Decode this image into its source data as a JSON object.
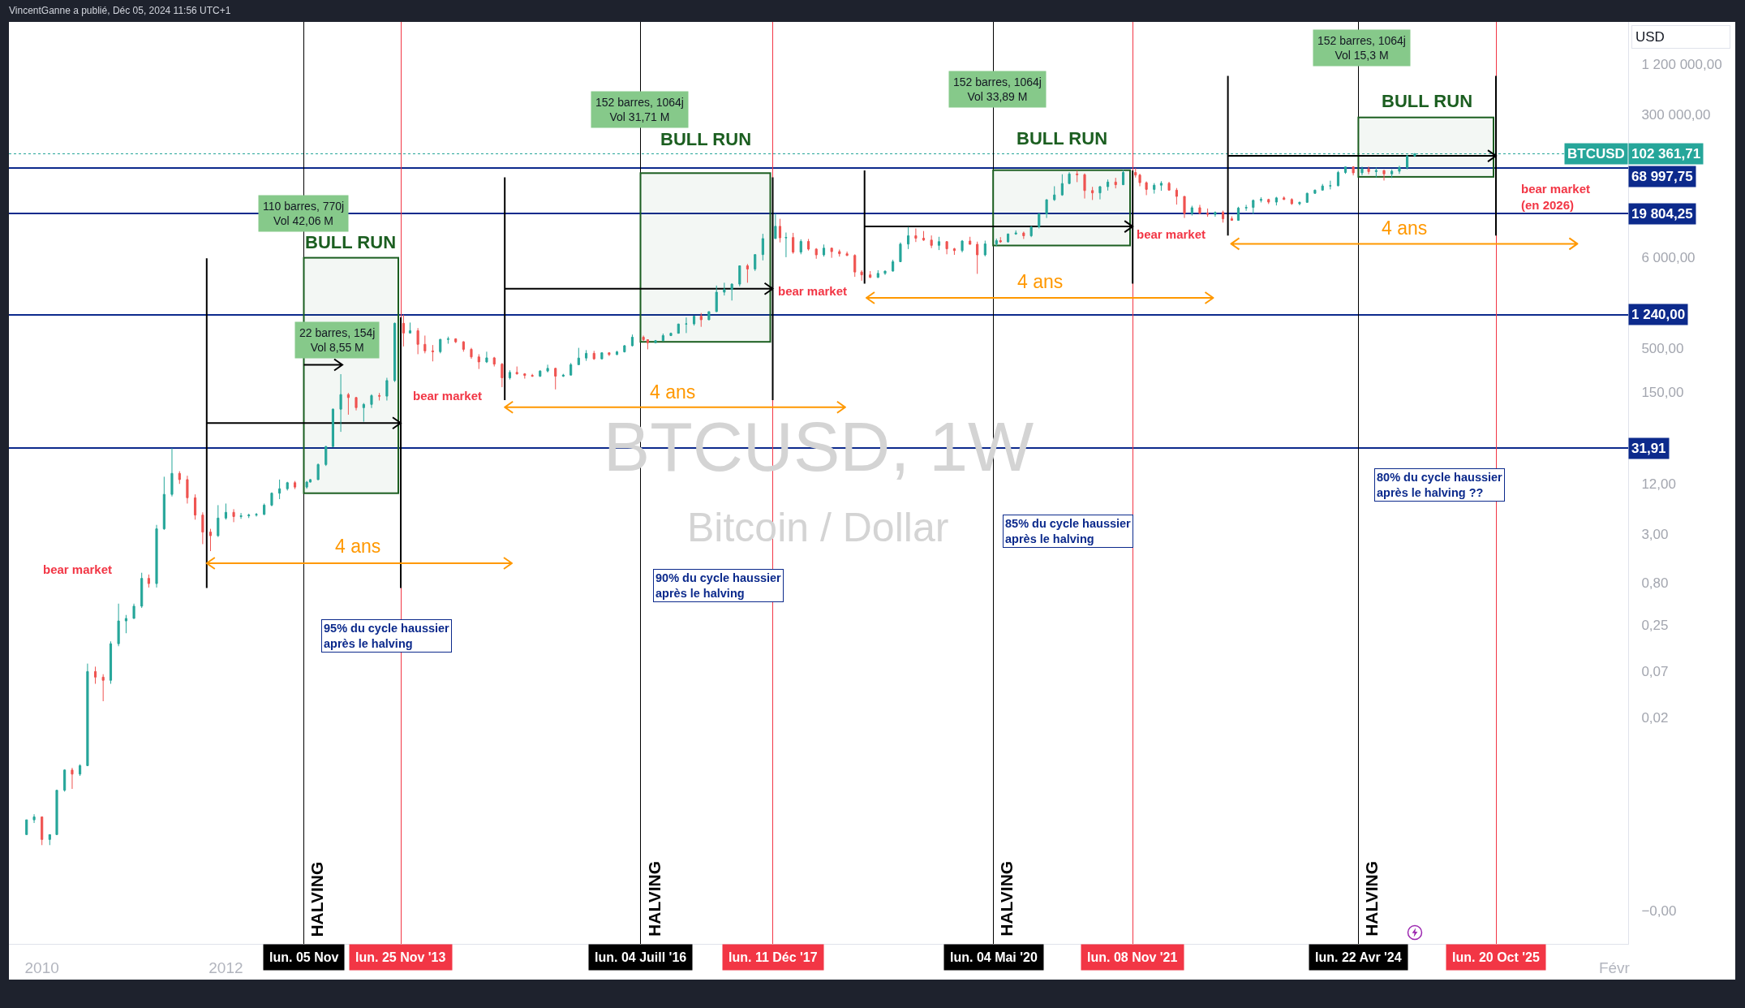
{
  "chart_data": {
    "type": "candlestick",
    "title": "BTCUSD, 1W",
    "subtitle": "Bitcoin / Dollar",
    "ylabel": "USD",
    "log": true,
    "xlim": [
      "2009-08-23",
      "2027-03-28"
    ],
    "ylim": [
      4e-05,
      3800000
    ],
    "xticks": [
      {
        "value": "2010-01-01",
        "label": "2010"
      },
      {
        "value": "2012-01-01",
        "label": "2012"
      },
      {
        "value": "2027-02-01",
        "label": "Févr"
      }
    ],
    "yticks": [
      {
        "value": 1200000,
        "label": "1 200 000,00"
      },
      {
        "value": 300000,
        "label": "300 000,00"
      },
      {
        "value": 6000,
        "label": "6 000,00"
      },
      {
        "value": 500,
        "label": "500,00"
      },
      {
        "value": 150,
        "label": "150,00"
      },
      {
        "value": 12,
        "label": "12,00"
      },
      {
        "value": 3,
        "label": "3,00"
      },
      {
        "value": 0.8,
        "label": "0,80"
      },
      {
        "value": 0.25,
        "label": "0,25"
      },
      {
        "value": 0.07,
        "label": "0,07"
      },
      {
        "value": 0.02,
        "label": "0,02"
      },
      {
        "value": 0.0001,
        "label": "−0,00"
      }
    ],
    "series": [
      {
        "name": "BTCUSD",
        "x": [
          "2009-11",
          "2009-12",
          "2010-01",
          "2010-02",
          "2010-03",
          "2010-04",
          "2010-05",
          "2010-06",
          "2010-07",
          "2010-08",
          "2010-09",
          "2010-10",
          "2010-11",
          "2010-12",
          "2011-01",
          "2011-02",
          "2011-03",
          "2011-04",
          "2011-05",
          "2011-06",
          "2011-07",
          "2011-08",
          "2011-09",
          "2011-10",
          "2011-11",
          "2011-12",
          "2012-01",
          "2012-02",
          "2012-03",
          "2012-04",
          "2012-05",
          "2012-06",
          "2012-07",
          "2012-08",
          "2012-09",
          "2012-10",
          "2012-11-17",
          "2012-12",
          "2013-01",
          "2013-02",
          "2013-03",
          "2013-04",
          "2013-05",
          "2013-06",
          "2013-07",
          "2013-08",
          "2013-09",
          "2013-10",
          "2013-11",
          "2013-12-06",
          "2014-01",
          "2014-02",
          "2014-03",
          "2014-04",
          "2014-05",
          "2014-06",
          "2014-07",
          "2014-08",
          "2014-09",
          "2014-10",
          "2014-11",
          "2014-12",
          "2015-01",
          "2015-02",
          "2015-03",
          "2015-04",
          "2015-05",
          "2015-06",
          "2015-07",
          "2015-08",
          "2015-09",
          "2015-10",
          "2015-11",
          "2015-12",
          "2016-01",
          "2016-02",
          "2016-03",
          "2016-04",
          "2016-05",
          "2016-06",
          "2016-07-15",
          "2016-08",
          "2016-09",
          "2016-10",
          "2016-11",
          "2016-12",
          "2017-01",
          "2017-02",
          "2017-03",
          "2017-04",
          "2017-05",
          "2017-06",
          "2017-07",
          "2017-08",
          "2017-09",
          "2017-10",
          "2017-11",
          "2017-12-21",
          "2018-01-08",
          "2018-02",
          "2018-03",
          "2018-04",
          "2018-05",
          "2018-06",
          "2018-07",
          "2018-08",
          "2018-09",
          "2018-10",
          "2018-11",
          "2018-11-28",
          "2019-01",
          "2019-02",
          "2019-03",
          "2019-04",
          "2019-05",
          "2019-06",
          "2019-07",
          "2019-08",
          "2019-09",
          "2019-10",
          "2019-11",
          "2019-12",
          "2020-01",
          "2020-02",
          "2020-03",
          "2020-04",
          "2020-05-16",
          "2020-06",
          "2020-07",
          "2020-08",
          "2020-09",
          "2020-10",
          "2020-11",
          "2020-12",
          "2021-01",
          "2021-02",
          "2021-03",
          "2021-04",
          "2021-05",
          "2021-06",
          "2021-07",
          "2021-08",
          "2021-09",
          "2021-10",
          "2021-11-19",
          "2021-12-06",
          "2022-01",
          "2022-02",
          "2022-03",
          "2022-04",
          "2022-05",
          "2022-06",
          "2022-07",
          "2022-08",
          "2022-09",
          "2022-10",
          "2022-11",
          "2022-12-06",
          "2023-01",
          "2023-02",
          "2023-03",
          "2023-04",
          "2023-05",
          "2023-06",
          "2023-07",
          "2023-08",
          "2023-09",
          "2023-10",
          "2023-11",
          "2023-12",
          "2024-01",
          "2024-02",
          "2024-03",
          "2024-04",
          "2024-05-06",
          "2024-06",
          "2024-07",
          "2024-08",
          "2024-09",
          "2024-10",
          "2024-11",
          "2024-12"
        ],
        "ohlc": [
          [
            0.0008,
            0.0012,
            0.0008,
            0.0012
          ],
          [
            0.0012,
            0.0014,
            0.0011,
            0.0013
          ],
          [
            0.0013,
            0.0013,
            0.0006,
            0.0007
          ],
          [
            0.0007,
            0.0008,
            0.0006,
            0.0008
          ],
          [
            0.0008,
            0.0027,
            0.0008,
            0.0027
          ],
          [
            0.0027,
            0.0048,
            0.0026,
            0.0047
          ],
          [
            0.0047,
            0.005,
            0.0028,
            0.0042
          ],
          [
            0.0042,
            0.0055,
            0.004,
            0.0053
          ],
          [
            0.0053,
            0.087,
            0.0053,
            0.07
          ],
          [
            0.07,
            0.08,
            0.05,
            0.06
          ],
          [
            0.06,
            0.065,
            0.031,
            0.055
          ],
          [
            0.055,
            0.16,
            0.05,
            0.15
          ],
          [
            0.15,
            0.45,
            0.14,
            0.28
          ],
          [
            0.28,
            0.33,
            0.2,
            0.3
          ],
          [
            0.3,
            0.45,
            0.3,
            0.42
          ],
          [
            0.42,
            1.05,
            0.4,
            0.9
          ],
          [
            0.9,
            1,
            0.7,
            0.78
          ],
          [
            0.78,
            3.9,
            0.7,
            3.5
          ],
          [
            3.5,
            14.6,
            3.4,
            9
          ],
          [
            9,
            32,
            8.5,
            16
          ],
          [
            16,
            17,
            12,
            13.5
          ],
          [
            13.5,
            15,
            7,
            8.2
          ],
          [
            8.2,
            9,
            4.5,
            5.1
          ],
          [
            5.1,
            5.5,
            2.3,
            3.2
          ],
          [
            3.2,
            3.5,
            1.9,
            2.9
          ],
          [
            2.9,
            6.7,
            2.8,
            4.7
          ],
          [
            4.7,
            7,
            4.5,
            5.5
          ],
          [
            5.5,
            6,
            4.2,
            4.9
          ],
          [
            4.9,
            5.4,
            4.6,
            5
          ],
          [
            5,
            5.3,
            4.7,
            5.1
          ],
          [
            5.1,
            5.4,
            4.9,
            5.2
          ],
          [
            5.2,
            7,
            5.1,
            6.7
          ],
          [
            6.7,
            9.5,
            6.5,
            9.3
          ],
          [
            9.3,
            13.5,
            7.9,
            10.5
          ],
          [
            10.5,
            12.7,
            10,
            12.4
          ],
          [
            12.4,
            13,
            10.4,
            11
          ],
          [
            11,
            13,
            10.5,
            12.6
          ],
          [
            12.6,
            13.7,
            12.5,
            13.5
          ],
          [
            13.5,
            21,
            13.3,
            20.4
          ],
          [
            20.4,
            34,
            19.6,
            33.4
          ],
          [
            33.4,
            95,
            33,
            93
          ],
          [
            93,
            243,
            50,
            139
          ],
          [
            139,
            145,
            80,
            128
          ],
          [
            128,
            130,
            90,
            97
          ],
          [
            97,
            110,
            66,
            106
          ],
          [
            106,
            140,
            96,
            135
          ],
          [
            135,
            145,
            118,
            133
          ],
          [
            133,
            220,
            118,
            204
          ],
          [
            204,
            1000,
            196,
            980
          ],
          [
            980,
            1240,
            520,
            750
          ],
          [
            750,
            1000,
            740,
            800
          ],
          [
            800,
            860,
            420,
            550
          ],
          [
            550,
            700,
            430,
            460
          ],
          [
            460,
            540,
            345,
            450
          ],
          [
            450,
            640,
            430,
            630
          ],
          [
            630,
            680,
            560,
            640
          ],
          [
            640,
            650,
            570,
            590
          ],
          [
            590,
            600,
            450,
            480
          ],
          [
            480,
            500,
            370,
            390
          ],
          [
            390,
            420,
            280,
            340
          ],
          [
            340,
            450,
            330,
            380
          ],
          [
            380,
            390,
            300,
            320
          ],
          [
            320,
            330,
            170,
            220
          ],
          [
            220,
            270,
            210,
            255
          ],
          [
            255,
            300,
            240,
            245
          ],
          [
            245,
            250,
            215,
            235
          ],
          [
            235,
            245,
            225,
            230
          ],
          [
            230,
            270,
            225,
            265
          ],
          [
            265,
            315,
            255,
            285
          ],
          [
            285,
            290,
            160,
            230
          ],
          [
            230,
            245,
            225,
            237
          ],
          [
            237,
            330,
            235,
            315
          ],
          [
            315,
            500,
            315,
            378
          ],
          [
            378,
            470,
            350,
            430
          ],
          [
            430,
            460,
            360,
            370
          ],
          [
            370,
            440,
            365,
            437
          ],
          [
            437,
            440,
            400,
            416
          ],
          [
            416,
            460,
            410,
            448
          ],
          [
            448,
            540,
            440,
            530
          ],
          [
            530,
            720,
            520,
            670
          ],
          [
            670,
            700,
            600,
            625
          ],
          [
            625,
            630,
            480,
            575
          ],
          [
            575,
            620,
            570,
            610
          ],
          [
            610,
            740,
            600,
            700
          ],
          [
            700,
            760,
            690,
            745
          ],
          [
            745,
            970,
            740,
            960
          ],
          [
            960,
            1150,
            750,
            965
          ],
          [
            965,
            1200,
            920,
            1190
          ],
          [
            1190,
            1300,
            890,
            1080
          ],
          [
            1080,
            1350,
            1070,
            1350
          ],
          [
            1350,
            2760,
            1340,
            2300
          ],
          [
            2300,
            2980,
            2100,
            2480
          ],
          [
            2480,
            2930,
            1830,
            2870
          ],
          [
            2870,
            4750,
            2700,
            4740
          ],
          [
            4740,
            4980,
            2980,
            4340
          ],
          [
            4340,
            6470,
            4110,
            6450
          ],
          [
            6450,
            11400,
            5500,
            10000
          ],
          [
            10000,
            19800,
            10000,
            14000
          ],
          [
            14000,
            17200,
            9000,
            10200
          ],
          [
            10200,
            11800,
            6000,
            10300
          ],
          [
            10300,
            11700,
            6600,
            6900
          ],
          [
            6900,
            9800,
            6500,
            9250
          ],
          [
            9250,
            9900,
            7200,
            7500
          ],
          [
            7500,
            7700,
            5750,
            6400
          ],
          [
            6400,
            8500,
            6100,
            7700
          ],
          [
            7700,
            7800,
            5900,
            7000
          ],
          [
            7000,
            7400,
            6100,
            6600
          ],
          [
            6600,
            7000,
            6200,
            6300
          ],
          [
            6300,
            6500,
            3500,
            4000
          ],
          [
            4000,
            4200,
            3150,
            3700
          ],
          [
            3700,
            4100,
            3400,
            3450
          ],
          [
            3450,
            4200,
            3400,
            3850
          ],
          [
            3850,
            4150,
            3700,
            4100
          ],
          [
            4100,
            5600,
            4050,
            5300
          ],
          [
            5300,
            9000,
            5300,
            8600
          ],
          [
            8600,
            13800,
            7500,
            10800
          ],
          [
            10800,
            13200,
            9100,
            10100
          ],
          [
            10100,
            12300,
            9400,
            9600
          ],
          [
            9600,
            10900,
            7700,
            8300
          ],
          [
            8300,
            10500,
            7300,
            9200
          ],
          [
            9200,
            9300,
            6500,
            7550
          ],
          [
            7550,
            7750,
            6400,
            7200
          ],
          [
            7200,
            9600,
            6850,
            9350
          ],
          [
            9350,
            10500,
            8500,
            8550
          ],
          [
            8550,
            9200,
            3800,
            6400
          ],
          [
            6400,
            9450,
            6150,
            8650
          ],
          [
            8650,
            10000,
            8100,
            9450
          ],
          [
            9450,
            10400,
            8900,
            9140
          ],
          [
            9140,
            11450,
            8950,
            11350
          ],
          [
            11350,
            12500,
            11100,
            11650
          ],
          [
            11650,
            12100,
            9900,
            10800
          ],
          [
            10800,
            14100,
            10400,
            13800
          ],
          [
            13800,
            19900,
            13200,
            19700
          ],
          [
            19700,
            29300,
            17600,
            29000
          ],
          [
            29000,
            42000,
            28100,
            33100
          ],
          [
            33100,
            58300,
            32300,
            45200
          ],
          [
            45200,
            61800,
            44900,
            58800
          ],
          [
            58800,
            64900,
            47000,
            57700
          ],
          [
            57700,
            59600,
            30000,
            37300
          ],
          [
            37300,
            41300,
            28800,
            35000
          ],
          [
            35000,
            42300,
            29300,
            41500
          ],
          [
            41500,
            50500,
            37300,
            47100
          ],
          [
            47100,
            52900,
            39600,
            43800
          ],
          [
            43800,
            66000,
            43300,
            61300
          ],
          [
            61300,
            69000,
            53300,
            57000
          ],
          [
            57000,
            59100,
            42000,
            46300
          ],
          [
            46300,
            47900,
            32900,
            38500
          ],
          [
            38500,
            45800,
            34300,
            43200
          ],
          [
            43200,
            48200,
            37100,
            45500
          ],
          [
            45500,
            47400,
            37600,
            37700
          ],
          [
            37700,
            40000,
            25400,
            31800
          ],
          [
            31800,
            31900,
            17600,
            19900
          ],
          [
            19900,
            24600,
            18800,
            23300
          ],
          [
            23300,
            25200,
            19600,
            20000
          ],
          [
            20000,
            22800,
            18200,
            19400
          ],
          [
            19400,
            21000,
            18200,
            20500
          ],
          [
            20500,
            21500,
            15500,
            17200
          ],
          [
            17200,
            18400,
            16300,
            16500
          ],
          [
            16500,
            23900,
            16500,
            23100
          ],
          [
            23100,
            25200,
            21400,
            23500
          ],
          [
            23500,
            29200,
            19600,
            28500
          ],
          [
            28500,
            31000,
            26900,
            29200
          ],
          [
            29200,
            29800,
            25800,
            27200
          ],
          [
            27200,
            31400,
            24800,
            30500
          ],
          [
            30500,
            31800,
            28900,
            29200
          ],
          [
            29200,
            30200,
            25200,
            26000
          ],
          [
            26000,
            27500,
            24900,
            27000
          ],
          [
            27000,
            35200,
            26600,
            34600
          ],
          [
            34600,
            38400,
            34100,
            37700
          ],
          [
            37700,
            44700,
            37600,
            42300
          ],
          [
            42300,
            48900,
            38500,
            42600
          ],
          [
            42600,
            64000,
            41900,
            61200
          ],
          [
            61200,
            72000,
            59000,
            71300
          ],
          [
            71300,
            72700,
            56500,
            60600
          ],
          [
            60600,
            71900,
            56600,
            67500
          ],
          [
            67500,
            71900,
            58400,
            62700
          ],
          [
            62700,
            70000,
            53500,
            64600
          ],
          [
            64600,
            65600,
            49100,
            58900
          ],
          [
            58900,
            66500,
            52600,
            63300
          ],
          [
            63300,
            73600,
            58900,
            70200
          ],
          [
            70200,
            99000,
            66800,
            96400
          ],
          [
            96400,
            104000,
            94000,
            102361.71
          ]
        ],
        "colors": [
          "#26a69a",
          "#26a69a",
          "#ef5350",
          "#26a69a",
          "#26a69a",
          "#26a69a",
          "#ef5350",
          "#26a69a",
          "#26a69a",
          "#ef5350",
          "#ef5350",
          "#26a69a",
          "#26a69a",
          "#26a69a",
          "#26a69a",
          "#26a69a",
          "#ef5350",
          "#26a69a",
          "#26a69a",
          "#26a69a",
          "#ef5350",
          "#ef5350",
          "#ef5350",
          "#ef5350",
          "#ef5350",
          "#26a69a",
          "#26a69a",
          "#ef5350",
          "#26a69a",
          "#26a69a",
          "#26a69a",
          "#26a69a",
          "#26a69a",
          "#26a69a",
          "#26a69a",
          "#ef5350",
          "#26a69a",
          "#26a69a",
          "#26a69a",
          "#26a69a",
          "#26a69a",
          "#26a69a",
          "#ef5350",
          "#ef5350",
          "#26a69a",
          "#26a69a",
          "#ef5350",
          "#26a69a",
          "#26a69a",
          "#ef5350",
          "#26a69a",
          "#ef5350",
          "#ef5350",
          "#ef5350",
          "#26a69a",
          "#26a69a",
          "#ef5350",
          "#ef5350",
          "#ef5350",
          "#ef5350",
          "#26a69a",
          "#ef5350",
          "#ef5350",
          "#26a69a",
          "#ef5350",
          "#ef5350",
          "#ef5350",
          "#26a69a",
          "#26a69a",
          "#ef5350",
          "#26a69a",
          "#26a69a",
          "#26a69a",
          "#26a69a",
          "#ef5350",
          "#26a69a",
          "#ef5350",
          "#26a69a",
          "#26a69a",
          "#26a69a",
          "#ef5350",
          "#ef5350",
          "#26a69a",
          "#26a69a",
          "#26a69a",
          "#26a69a",
          "#26a69a",
          "#26a69a",
          "#ef5350",
          "#26a69a",
          "#26a69a",
          "#26a69a",
          "#26a69a",
          "#26a69a",
          "#ef5350",
          "#26a69a",
          "#26a69a",
          "#26a69a",
          "#ef5350",
          "#26a69a",
          "#ef5350",
          "#26a69a",
          "#ef5350",
          "#ef5350",
          "#26a69a",
          "#ef5350",
          "#ef5350",
          "#ef5350",
          "#ef5350",
          "#ef5350",
          "#ef5350",
          "#26a69a",
          "#26a69a",
          "#26a69a",
          "#26a69a",
          "#26a69a",
          "#ef5350",
          "#ef5350",
          "#ef5350",
          "#26a69a",
          "#ef5350",
          "#ef5350",
          "#26a69a",
          "#ef5350",
          "#ef5350",
          "#26a69a",
          "#26a69a",
          "#ef5350",
          "#26a69a",
          "#26a69a",
          "#ef5350",
          "#26a69a",
          "#26a69a",
          "#26a69a",
          "#26a69a",
          "#26a69a",
          "#26a69a",
          "#ef5350",
          "#ef5350",
          "#ef5350",
          "#26a69a",
          "#26a69a",
          "#ef5350",
          "#26a69a",
          "#ef5350",
          "#ef5350",
          "#ef5350",
          "#26a69a",
          "#26a69a",
          "#ef5350",
          "#ef5350",
          "#ef5350",
          "#26a69a",
          "#ef5350",
          "#ef5350",
          "#26a69a",
          "#ef5350",
          "#ef5350",
          "#26a69a",
          "#26a69a",
          "#26a69a",
          "#26a69a",
          "#ef5350",
          "#26a69a",
          "#ef5350",
          "#ef5350",
          "#26a69a",
          "#26a69a",
          "#26a69a",
          "#26a69a",
          "#26a69a",
          "#26a69a",
          "#26a69a",
          "#ef5350",
          "#26a69a",
          "#ef5350",
          "#26a69a",
          "#ef5350",
          "#26a69a",
          "#26a69a",
          "#26a69a",
          "#26a69a"
        ]
      }
    ],
    "ref_lines": [
      {
        "axis": "y",
        "value": 31.91,
        "label": "31,91",
        "color": "#0c2a8c"
      },
      {
        "axis": "y",
        "value": 1240,
        "label": "1 240,00",
        "color": "#0c2a8c"
      },
      {
        "axis": "y",
        "value": 19804.25,
        "label": "19 804,25",
        "color": "#0c2a8c"
      },
      {
        "axis": "y",
        "value": 68997.75,
        "label": "68 997,75",
        "color": "#0c2a8c"
      },
      {
        "axis": "y",
        "value": 102361.71,
        "label": "102 361,71",
        "color": "#26a69a",
        "line_style": "dotted"
      },
      {
        "axis": "x",
        "value": "2012-11-05",
        "label": "lun. 05 Nov",
        "color": "#000000"
      },
      {
        "axis": "x",
        "value": "2013-11-25",
        "label": "lun. 25 Nov '13",
        "color": "#f23645"
      },
      {
        "axis": "x",
        "value": "2016-07-04",
        "label": "lun. 04 Juill '16",
        "color": "#000000"
      },
      {
        "axis": "x",
        "value": "2017-12-11",
        "label": "lun. 11 Déc '17",
        "color": "#f23645"
      },
      {
        "axis": "x",
        "value": "2020-05-04",
        "label": "lun. 04 Mai '20",
        "color": "#000000"
      },
      {
        "axis": "x",
        "value": "2021-11-08",
        "label": "lun. 08 Nov '21",
        "color": "#f23645"
      },
      {
        "axis": "x",
        "value": "2024-04-22",
        "label": "lun. 22 Avr '24",
        "color": "#000000"
      },
      {
        "axis": "x",
        "value": "2025-10-20",
        "label": "lun. 20 Oct '25",
        "color": "#f23645"
      }
    ],
    "annotations": [
      "VincentGanne a publié, Déc 05, 2024 11:56 UTC+1",
      "BULL RUN",
      "BULL RUN",
      "BULL RUN",
      "BULL RUN",
      "bear market",
      "bear market",
      "bear market",
      "bear market",
      "bear market\n(en 2026)",
      "4 ans",
      "4 ans",
      "4 ans",
      "4 ans",
      "110 barres, 770j\nVol 42,06 M",
      "22 barres, 154j\nVol 8,55 M",
      "152 barres, 1064j\nVol 31,71 M",
      "152 barres, 1064j\nVol 33,89 M",
      "152 barres, 1064j\nVol 15,3 M",
      "95% du cycle haussier\naprès le halving",
      "90% du cycle haussier\naprès le halving",
      "85% du cycle haussier\naprès le halving",
      "80% du cycle haussier\naprès le halving ??",
      {
        "text": "HALVING",
        "x": "2012-11-05"
      },
      {
        "text": "HALVING",
        "x": "2016-07-04"
      },
      {
        "text": "HALVING",
        "x": "2020-05-04"
      },
      {
        "text": "HALVING",
        "x": "2024-04-22"
      }
    ]
  }
}
